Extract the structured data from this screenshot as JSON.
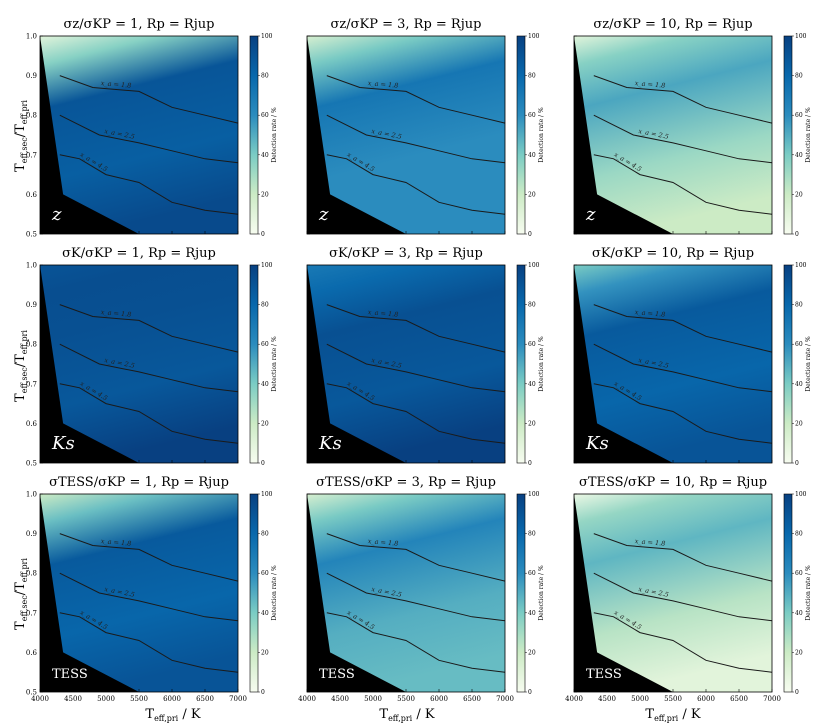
{
  "figure": {
    "ylabel": "T_eff,sec/T_eff,pri",
    "xlabel": "T_eff,pri / K",
    "colorbar_label": "Detection rate / %"
  },
  "chart_data": {
    "type": "heatmap",
    "xlim": [
      4000,
      7000
    ],
    "ylim": [
      0.5,
      1.0
    ],
    "clim": [
      0,
      100
    ],
    "x_ticks": [
      "4000",
      "4500",
      "5000",
      "5500",
      "6000",
      "6500",
      "7000"
    ],
    "y_ticks": [
      "0.5",
      "0.6",
      "0.7",
      "0.8",
      "0.9",
      "1.0"
    ],
    "colorbar_ticks": [
      "0",
      "20",
      "40",
      "60",
      "80",
      "100"
    ],
    "colormap": [
      "#f7fcf0",
      "#ccebc5",
      "#7bccc4",
      "#2b8cbe",
      "#0868ac",
      "#084081"
    ],
    "excluded_region": [
      [
        4000,
        1.0
      ],
      [
        4350,
        0.6
      ],
      [
        5500,
        0.5
      ],
      [
        4000,
        0.5
      ]
    ],
    "contours": [
      {
        "label": "x_a = 1.8",
        "points": [
          [
            4300,
            0.9
          ],
          [
            4800,
            0.87
          ],
          [
            5500,
            0.86
          ],
          [
            6000,
            0.82
          ],
          [
            6500,
            0.8
          ],
          [
            7000,
            0.78
          ]
        ]
      },
      {
        "label": "x_a = 2.5",
        "points": [
          [
            4300,
            0.8
          ],
          [
            4900,
            0.75
          ],
          [
            5500,
            0.73
          ],
          [
            6000,
            0.71
          ],
          [
            6500,
            0.69
          ],
          [
            7000,
            0.68
          ]
        ]
      },
      {
        "label": "x_a = 4.5",
        "points": [
          [
            4300,
            0.7
          ],
          [
            4600,
            0.69
          ],
          [
            5000,
            0.65
          ],
          [
            5500,
            0.63
          ],
          [
            6000,
            0.58
          ],
          [
            6500,
            0.56
          ],
          [
            7000,
            0.55
          ]
        ]
      }
    ],
    "panels": [
      {
        "title": "σz/σKP = 1,  Rp = Rjup",
        "band": "z",
        "ratio": 1,
        "top_fade": 0.9,
        "bottom_fade": 0.05
      },
      {
        "title": "σz/σKP = 3,  Rp = Rjup",
        "band": "z",
        "ratio": 3,
        "top_fade": 0.85,
        "bottom_fade": 0.4
      },
      {
        "title": "σz/σKP = 10,  Rp = Rjup",
        "band": "z",
        "ratio": 10,
        "top_fade": 0.9,
        "bottom_fade": 0.8
      },
      {
        "title": "σK/σKP = 1,  Rp = Rjup",
        "band": "Ks",
        "ratio": 1,
        "top_fade": 0.1,
        "bottom_fade": 0.0
      },
      {
        "title": "σK/σKP = 3,  Rp = Rjup",
        "band": "Ks",
        "ratio": 3,
        "top_fade": 0.3,
        "bottom_fade": 0.0
      },
      {
        "title": "σK/σKP = 10,  Rp = Rjup",
        "band": "Ks",
        "ratio": 10,
        "top_fade": 0.6,
        "bottom_fade": 0.1
      },
      {
        "title": "σTESS/σKP = 1,  Rp = Rjup",
        "band": "TESS",
        "ratio": 1,
        "top_fade": 0.8,
        "bottom_fade": 0.1
      },
      {
        "title": "σTESS/σKP = 3,  Rp = Rjup",
        "band": "TESS",
        "ratio": 3,
        "top_fade": 0.85,
        "bottom_fade": 0.55
      },
      {
        "title": "σTESS/σKP = 10,  Rp = Rjup",
        "band": "TESS",
        "ratio": 10,
        "top_fade": 0.95,
        "bottom_fade": 0.9
      }
    ]
  }
}
